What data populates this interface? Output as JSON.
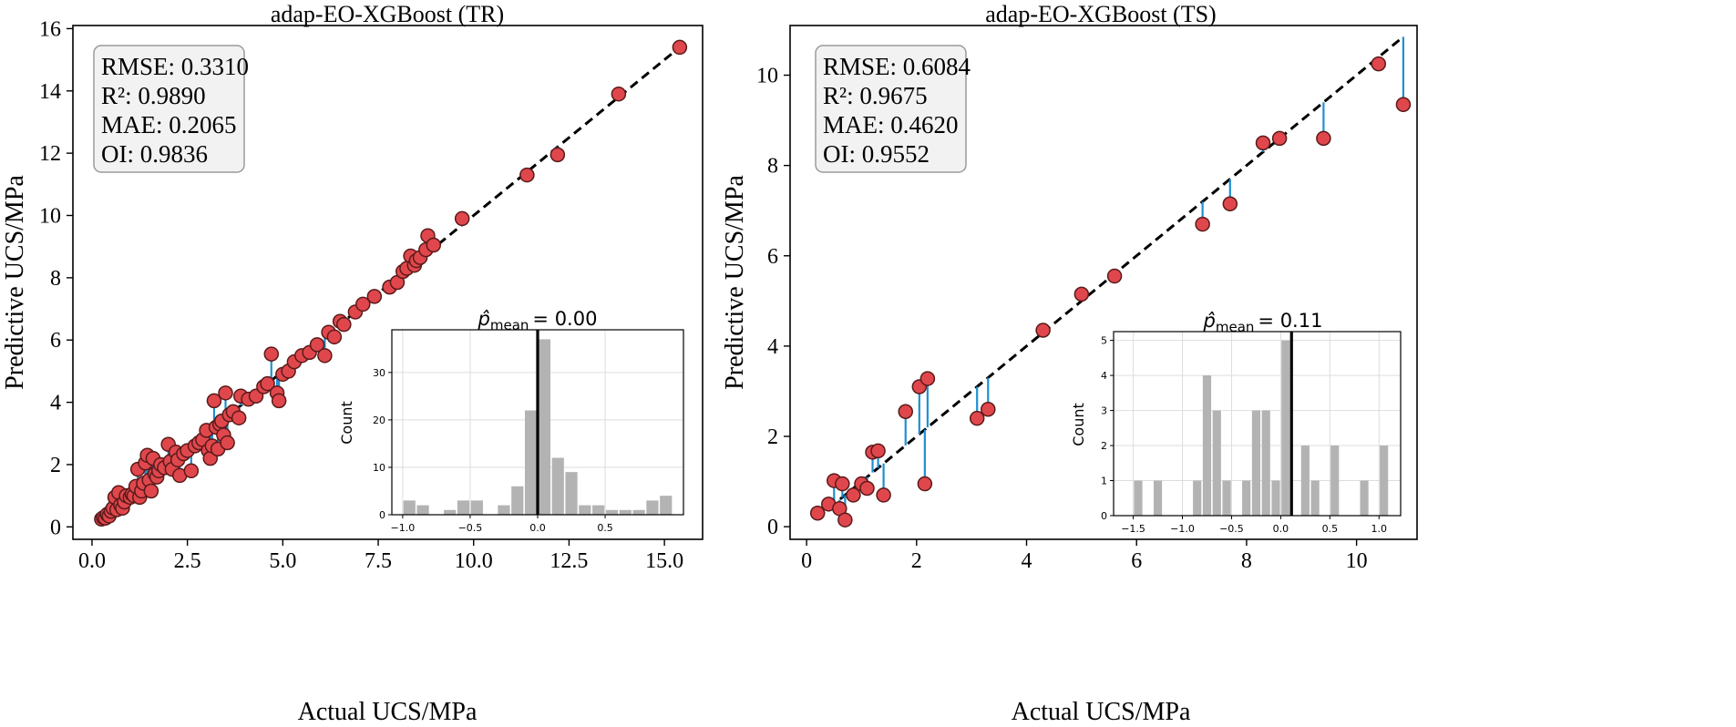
{
  "colors": {
    "point_fill": "#e0474c",
    "point_edge": "#5a1a1a",
    "residual": "#1f8fd0",
    "identity": "#000000",
    "hist_bar": "#b3b3b3",
    "mean_line": "#000000",
    "box_fill": "#f2f2f2"
  },
  "chart_data": [
    {
      "type": "scatter",
      "title": "adap-EO-XGBoost (TR)",
      "xlabel": "Actual UCS/MPa",
      "ylabel": "Predictive UCS/MPa",
      "xlim": [
        -0.5,
        16.0
      ],
      "ylim": [
        -0.4,
        16.1
      ],
      "xticks": [
        0.0,
        2.5,
        5.0,
        7.5,
        10.0,
        12.5,
        15.0
      ],
      "xtick_labels": [
        "0.0",
        "2.5",
        "5.0",
        "7.5",
        "10.0",
        "12.5",
        "15.0"
      ],
      "yticks": [
        0,
        2,
        4,
        6,
        8,
        10,
        12,
        14,
        16
      ],
      "ytick_labels": [
        "0",
        "2",
        "4",
        "6",
        "8",
        "10",
        "12",
        "14",
        "16"
      ],
      "identity_line": [
        0.2,
        15.4
      ],
      "metrics": [
        "RMSE: 0.3310",
        "R²: 0.9890",
        "MAE: 0.2065",
        "OI: 0.9836"
      ],
      "points": [
        [
          0.25,
          0.25
        ],
        [
          0.3,
          0.3
        ],
        [
          0.35,
          0.28
        ],
        [
          0.4,
          0.4
        ],
        [
          0.45,
          0.35
        ],
        [
          0.5,
          0.5
        ],
        [
          0.55,
          0.6
        ],
        [
          0.6,
          0.95
        ],
        [
          0.65,
          0.55
        ],
        [
          0.7,
          1.1
        ],
        [
          0.75,
          0.7
        ],
        [
          0.8,
          0.6
        ],
        [
          0.85,
          0.8
        ],
        [
          0.9,
          1.0
        ],
        [
          1.0,
          0.95
        ],
        [
          1.05,
          1.05
        ],
        [
          1.1,
          1.0
        ],
        [
          1.15,
          1.3
        ],
        [
          1.2,
          1.85
        ],
        [
          1.25,
          0.95
        ],
        [
          1.3,
          1.15
        ],
        [
          1.35,
          1.4
        ],
        [
          1.4,
          2.05
        ],
        [
          1.45,
          2.3
        ],
        [
          1.5,
          1.5
        ],
        [
          1.55,
          1.15
        ],
        [
          1.6,
          2.2
        ],
        [
          1.65,
          1.7
        ],
        [
          1.7,
          1.6
        ],
        [
          1.75,
          1.8
        ],
        [
          1.8,
          2.0
        ],
        [
          1.9,
          1.9
        ],
        [
          2.0,
          2.65
        ],
        [
          2.05,
          2.1
        ],
        [
          2.1,
          1.85
        ],
        [
          2.2,
          2.4
        ],
        [
          2.25,
          2.15
        ],
        [
          2.3,
          1.65
        ],
        [
          2.4,
          2.35
        ],
        [
          2.5,
          2.45
        ],
        [
          2.6,
          1.8
        ],
        [
          2.7,
          2.6
        ],
        [
          2.8,
          2.7
        ],
        [
          2.9,
          2.8
        ],
        [
          3.0,
          3.1
        ],
        [
          3.05,
          2.45
        ],
        [
          3.1,
          2.2
        ],
        [
          3.15,
          2.6
        ],
        [
          3.2,
          4.05
        ],
        [
          3.25,
          3.2
        ],
        [
          3.3,
          2.5
        ],
        [
          3.35,
          3.3
        ],
        [
          3.4,
          3.4
        ],
        [
          3.45,
          2.95
        ],
        [
          3.5,
          4.3
        ],
        [
          3.55,
          2.7
        ],
        [
          3.6,
          3.6
        ],
        [
          3.7,
          3.7
        ],
        [
          3.85,
          3.5
        ],
        [
          3.9,
          4.2
        ],
        [
          4.1,
          4.1
        ],
        [
          4.3,
          4.2
        ],
        [
          4.5,
          4.5
        ],
        [
          4.6,
          4.6
        ],
        [
          4.7,
          5.55
        ],
        [
          4.85,
          4.3
        ],
        [
          4.9,
          4.05
        ],
        [
          5.0,
          4.9
        ],
        [
          5.15,
          5.0
        ],
        [
          5.3,
          5.3
        ],
        [
          5.5,
          5.5
        ],
        [
          5.7,
          5.6
        ],
        [
          5.9,
          5.85
        ],
        [
          6.1,
          5.5
        ],
        [
          6.2,
          6.25
        ],
        [
          6.35,
          6.1
        ],
        [
          6.5,
          6.6
        ],
        [
          6.6,
          6.5
        ],
        [
          6.9,
          6.9
        ],
        [
          7.1,
          7.15
        ],
        [
          7.4,
          7.4
        ],
        [
          7.8,
          7.7
        ],
        [
          8.0,
          7.85
        ],
        [
          8.15,
          8.2
        ],
        [
          8.25,
          8.3
        ],
        [
          8.35,
          8.7
        ],
        [
          8.45,
          8.4
        ],
        [
          8.5,
          8.55
        ],
        [
          8.6,
          8.65
        ],
        [
          8.75,
          8.9
        ],
        [
          8.8,
          9.35
        ],
        [
          8.95,
          9.05
        ],
        [
          9.7,
          9.9
        ],
        [
          11.4,
          11.3
        ],
        [
          12.2,
          11.95
        ],
        [
          13.8,
          13.9
        ],
        [
          15.4,
          15.4
        ]
      ],
      "inset": {
        "type": "bar",
        "title_expr": "p̂",
        "title_sub": "mean",
        "title_value": "= 0.00",
        "ylabel": "Count",
        "xlim": [
          -1.08,
          1.08
        ],
        "ylim": [
          0,
          39
        ],
        "xticks": [
          -1.0,
          -0.5,
          0.0,
          0.5
        ],
        "xtick_labels": [
          "−1.0",
          "−0.5",
          "0.0",
          "0.5"
        ],
        "yticks": [
          0,
          10,
          20,
          30
        ],
        "ytick_labels": [
          "0",
          "10",
          "20",
          "30"
        ],
        "bin_width": 0.1,
        "bin_starts": [
          -1.0,
          -0.9,
          -0.8,
          -0.7,
          -0.6,
          -0.5,
          -0.4,
          -0.3,
          -0.2,
          -0.1,
          0.0,
          0.1,
          0.2,
          0.3,
          0.4,
          0.5,
          0.6,
          0.7,
          0.8,
          0.9
        ],
        "counts": [
          3,
          2,
          0,
          1,
          3,
          3,
          0,
          2,
          6,
          22,
          37,
          12,
          9,
          2,
          2,
          1,
          1,
          1,
          3,
          4
        ],
        "mean": 0.0
      }
    },
    {
      "type": "scatter",
      "title": "adap-EO-XGBoost (TS)",
      "xlabel": "Actual UCS/MPa",
      "ylabel": "Predictive UCS/MPa",
      "xlim": [
        -0.3,
        11.1
      ],
      "ylim": [
        -0.28,
        11.1
      ],
      "xticks": [
        0,
        2,
        4,
        6,
        8,
        10
      ],
      "xtick_labels": [
        "0",
        "2",
        "4",
        "6",
        "8",
        "10"
      ],
      "yticks": [
        0,
        2,
        4,
        6,
        8,
        10
      ],
      "ytick_labels": [
        "0",
        "2",
        "4",
        "6",
        "8",
        "10"
      ],
      "identity_line": [
        0.2,
        10.8
      ],
      "metrics": [
        "RMSE: 0.6084",
        "R²: 0.9675",
        "MAE: 0.4620",
        "OI: 0.9552"
      ],
      "points": [
        [
          0.2,
          0.3
        ],
        [
          0.4,
          0.5
        ],
        [
          0.5,
          1.02
        ],
        [
          0.6,
          0.4
        ],
        [
          0.65,
          0.95
        ],
        [
          0.7,
          0.15
        ],
        [
          0.85,
          0.7
        ],
        [
          1.0,
          0.95
        ],
        [
          1.1,
          0.85
        ],
        [
          1.2,
          1.65
        ],
        [
          1.3,
          1.68
        ],
        [
          1.4,
          0.7
        ],
        [
          1.8,
          2.55
        ],
        [
          2.05,
          3.1
        ],
        [
          2.15,
          0.95
        ],
        [
          2.2,
          3.28
        ],
        [
          3.1,
          2.4
        ],
        [
          3.3,
          2.6
        ],
        [
          4.3,
          4.35
        ],
        [
          5.0,
          5.15
        ],
        [
          5.6,
          5.55
        ],
        [
          7.2,
          6.7
        ],
        [
          7.7,
          7.15
        ],
        [
          8.3,
          8.5
        ],
        [
          8.6,
          8.6
        ],
        [
          9.4,
          8.6
        ],
        [
          10.4,
          10.25
        ],
        [
          10.85,
          9.35
        ]
      ],
      "inset": {
        "type": "bar",
        "title_expr": "p̂",
        "title_sub": "mean",
        "title_value": "= 0.11",
        "ylabel": "Count",
        "xlim": [
          -1.7,
          1.22
        ],
        "ylim": [
          0,
          5.25
        ],
        "xticks": [
          -1.5,
          -1.0,
          -0.5,
          0.0,
          0.5,
          1.0
        ],
        "xtick_labels": [
          "−1.5",
          "−1.0",
          "−0.5",
          "0.0",
          "0.5",
          "1.0"
        ],
        "yticks": [
          0,
          1,
          2,
          3,
          4,
          5
        ],
        "ytick_labels": [
          "0",
          "1",
          "2",
          "3",
          "4",
          "5"
        ],
        "bin_width": 0.1,
        "bin_starts": [
          -1.6,
          -1.5,
          -1.4,
          -1.3,
          -1.2,
          -1.1,
          -1.0,
          -0.9,
          -0.8,
          -0.7,
          -0.6,
          -0.5,
          -0.4,
          -0.3,
          -0.2,
          -0.1,
          0.0,
          0.1,
          0.2,
          0.3,
          0.4,
          0.5,
          0.6,
          0.7,
          0.8,
          0.9,
          1.0
        ],
        "counts": [
          0,
          1,
          0,
          1,
          0,
          0,
          0,
          1,
          4,
          3,
          1,
          0,
          1,
          3,
          3,
          1,
          5,
          0,
          2,
          1,
          0,
          2,
          0,
          0,
          1,
          0,
          2
        ],
        "mean": 0.11
      }
    }
  ]
}
